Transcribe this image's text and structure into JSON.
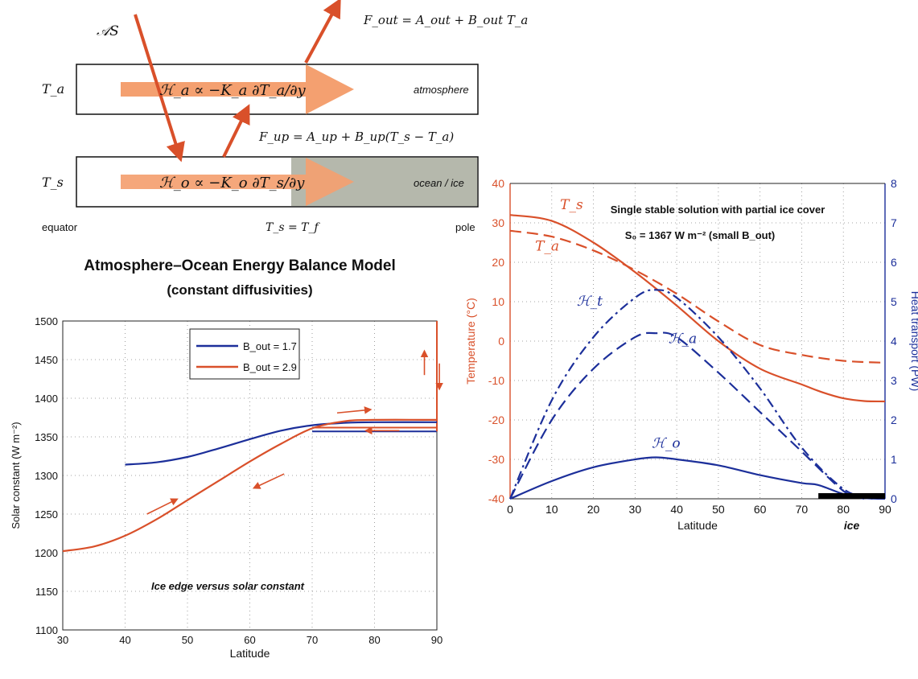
{
  "colors": {
    "orange": "#d9502a",
    "blue": "#1c2f9a",
    "arrow_fill": "#f4a070",
    "ice_fill": "#b5b8ac",
    "ice_bar": "#000000"
  },
  "diagram": {
    "label_as": "𝒜S",
    "label_fout": "F_out = A_out + B_out T_a",
    "label_fup": "F_up = A_up + B_up(T_s − T_a)",
    "label_ta": "T_a",
    "label_ts": "T_s",
    "label_ha": "ℋ_a ∝ −K_a ∂T_a/∂y",
    "label_ho": "ℋ_o ∝ −K_o ∂T_s/∂y",
    "label_atmosphere": "atmosphere",
    "label_ocean": "ocean / ice",
    "label_equator": "equator",
    "label_tf": "T_s = T_f",
    "label_pole": "pole"
  },
  "heading": {
    "title": "Atmosphere–Ocean Energy Balance Model",
    "subtitle": "(constant diffusivities)"
  },
  "chart_data": [
    {
      "type": "line",
      "title": "",
      "annotation": "Ice edge versus solar constant",
      "xlabel": "Latitude",
      "ylabel": "Solar constant (W m⁻²)",
      "xlim": [
        30,
        90
      ],
      "ylim": [
        1100,
        1500
      ],
      "xticks": [
        "30",
        "40",
        "50",
        "60",
        "70",
        "80",
        "90"
      ],
      "yticks": [
        "1100",
        "1150",
        "1200",
        "1250",
        "1300",
        "1350",
        "1400",
        "1450",
        "1500"
      ],
      "grid": true,
      "legend_position": "top-center",
      "series": [
        {
          "name": "B_out = 1.7",
          "color": "#1c2f9a",
          "x": [
            40,
            45,
            50,
            55,
            60,
            65,
            70,
            75,
            80,
            90
          ],
          "y": [
            1314,
            1317,
            1324,
            1335,
            1347,
            1358,
            1365,
            1368,
            1369,
            1369
          ]
        },
        {
          "name": "B_out = 2.9",
          "color": "#d9502a",
          "x": [
            30,
            35,
            40,
            45,
            50,
            55,
            60,
            65,
            70,
            75,
            80,
            90
          ],
          "y": [
            1202,
            1208,
            1222,
            1243,
            1268,
            1293,
            1318,
            1341,
            1361,
            1370,
            1372,
            1372
          ]
        }
      ],
      "extra_lines": [
        {
          "x": [
            70,
            90
          ],
          "y": [
            1357,
            1357
          ],
          "color": "#1c2f9a"
        },
        {
          "x": [
            70,
            90
          ],
          "y": [
            1362,
            1362
          ],
          "color": "#d9502a"
        },
        {
          "x": [
            90,
            90
          ],
          "y": [
            1357,
            1500
          ],
          "color": "#d9502a"
        }
      ]
    },
    {
      "type": "line",
      "title": "Single stable solution with partial ice cover",
      "subtitle": "S₀ = 1367 W m⁻² (small B_out)",
      "xlabel": "Latitude",
      "ylabel_left": "Temperature (°C)",
      "ylabel_right": "Heat transport (PW)",
      "xlim": [
        0,
        90
      ],
      "ylim_left": [
        -40,
        40
      ],
      "ylim_right": [
        0,
        8
      ],
      "xticks": [
        "0",
        "10",
        "20",
        "30",
        "40",
        "50",
        "60",
        "70",
        "80",
        "90"
      ],
      "yticks_left": [
        "-40",
        "-30",
        "-20",
        "-10",
        "0",
        "10",
        "20",
        "30",
        "40"
      ],
      "yticks_right": [
        "0",
        "1",
        "2",
        "3",
        "4",
        "5",
        "6",
        "7",
        "8"
      ],
      "grid": true,
      "ice_label": "ice",
      "ice_range": [
        74,
        90
      ],
      "series": [
        {
          "name": "T_s",
          "axis": "left",
          "color": "#d9502a",
          "dash": "solid",
          "x": [
            0,
            10,
            20,
            30,
            40,
            50,
            60,
            70,
            75,
            80,
            85,
            90
          ],
          "y": [
            32,
            30.5,
            25,
            17.5,
            9,
            0,
            -7,
            -11,
            -13,
            -14.5,
            -15.2,
            -15.3
          ]
        },
        {
          "name": "T_a",
          "axis": "left",
          "color": "#d9502a",
          "dash": "dashed",
          "x": [
            0,
            10,
            20,
            30,
            40,
            50,
            60,
            70,
            80,
            90
          ],
          "y": [
            28,
            26.5,
            23,
            18,
            12,
            5,
            -1,
            -3.5,
            -5,
            -5.5
          ]
        },
        {
          "name": "ℋ_t",
          "axis": "right",
          "color": "#1c2f9a",
          "dash": "dashdot",
          "x": [
            0,
            10,
            20,
            30,
            35,
            40,
            50,
            60,
            70,
            80,
            87
          ],
          "y": [
            0,
            2.5,
            4.1,
            5.1,
            5.3,
            5.1,
            4.1,
            2.8,
            1.3,
            0.25,
            0
          ]
        },
        {
          "name": "ℋ_a",
          "axis": "right",
          "color": "#1c2f9a",
          "dash": "dashed",
          "x": [
            0,
            10,
            20,
            30,
            35,
            40,
            50,
            60,
            70,
            80,
            85
          ],
          "y": [
            0,
            2.0,
            3.3,
            4.1,
            4.2,
            4.1,
            3.2,
            2.2,
            1.2,
            0.2,
            0
          ]
        },
        {
          "name": "ℋ_o",
          "axis": "right",
          "color": "#1c2f9a",
          "dash": "solid",
          "x": [
            0,
            10,
            20,
            30,
            35,
            40,
            50,
            60,
            70,
            74,
            80,
            85,
            90
          ],
          "y": [
            0,
            0.45,
            0.8,
            1.0,
            1.05,
            1.0,
            0.85,
            0.6,
            0.4,
            0.35,
            0.12,
            0.02,
            0
          ]
        }
      ]
    }
  ]
}
